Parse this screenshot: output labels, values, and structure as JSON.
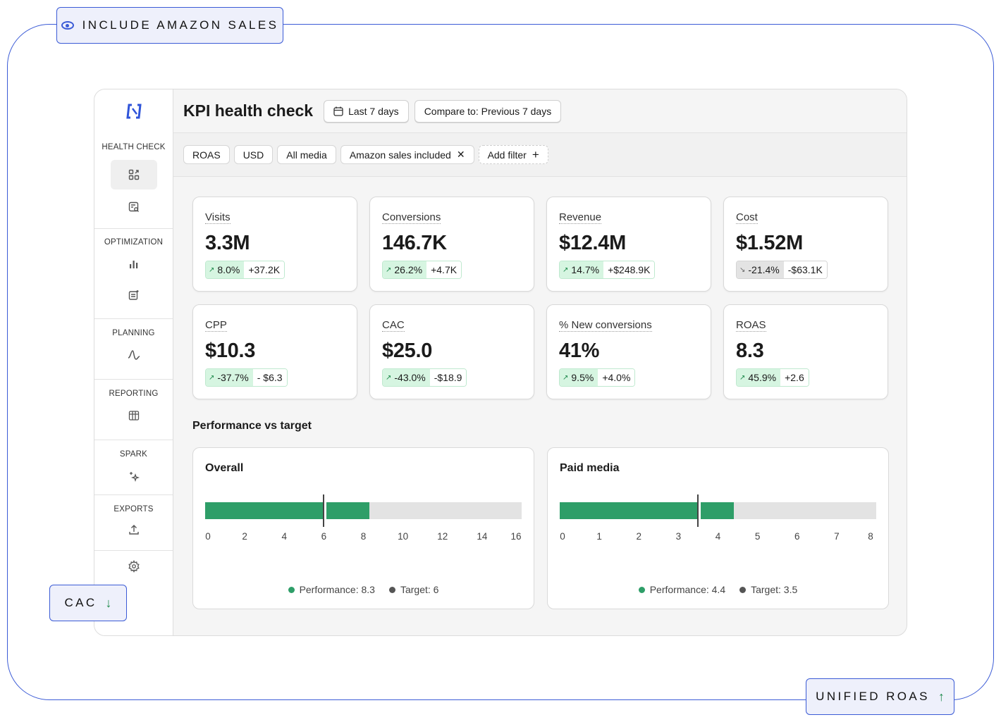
{
  "callouts": {
    "top": "INCLUDE AMAZON SALES",
    "cac": "CAC",
    "roas": "UNIFIED ROAS",
    "cac_arrow": "↓",
    "roas_arrow": "↑"
  },
  "sidebar": {
    "sections": [
      {
        "label": "HEALTH CHECK",
        "icons": [
          "dashboard-icon",
          "search-report-icon"
        ]
      },
      {
        "label": "OPTIMIZATION",
        "icons": [
          "bar-chart-icon",
          "sparkle-doc-icon"
        ]
      },
      {
        "label": "PLANNING",
        "icons": [
          "waveform-icon"
        ]
      },
      {
        "label": "REPORTING",
        "icons": [
          "table-icon"
        ]
      },
      {
        "label": "SPARK",
        "icons": [
          "sparkles-icon"
        ]
      },
      {
        "label": "EXPORTS",
        "icons": [
          "upload-icon"
        ]
      }
    ],
    "settings_icon": "gear-icon"
  },
  "header": {
    "title": "KPI health check",
    "date_range": "Last 7 days",
    "compare": "Compare to: Previous 7 days"
  },
  "filters": {
    "chips": [
      "ROAS",
      "USD",
      "All media"
    ],
    "amazon_chip": "Amazon sales included",
    "add_filter": "Add filter",
    "close_glyph": "✕",
    "plus_glyph": "+"
  },
  "kpis": [
    {
      "label": "Visits",
      "value": "3.3M",
      "pct": "8.0%",
      "abs": "+37.2K",
      "direction": "up"
    },
    {
      "label": "Conversions",
      "value": "146.7K",
      "pct": "26.2%",
      "abs": "+4.7K",
      "direction": "up"
    },
    {
      "label": "Revenue",
      "value": "$12.4M",
      "pct": "14.7%",
      "abs": "+$248.9K",
      "direction": "up"
    },
    {
      "label": "Cost",
      "value": "$1.52M",
      "pct": "-21.4%",
      "abs": "-$63.1K",
      "direction": "down"
    },
    {
      "label": "CPP",
      "value": "$10.3",
      "pct": "-37.7%",
      "abs": "- $6.3",
      "direction": "up"
    },
    {
      "label": "CAC",
      "value": "$25.0",
      "pct": "-43.0%",
      "abs": "-$18.9",
      "direction": "up"
    },
    {
      "label": "% New conversions",
      "value": "41%",
      "pct": "9.5%",
      "abs": "+4.0%",
      "direction": "up"
    },
    {
      "label": "ROAS",
      "value": "8.3",
      "pct": "45.9%",
      "abs": "+2.6",
      "direction": "up"
    }
  ],
  "performance": {
    "title": "Performance vs target",
    "cards": [
      {
        "title": "Overall",
        "performance": 8.3,
        "target": 6,
        "max": 16,
        "ticks": [
          "0",
          "2",
          "4",
          "6",
          "8",
          "10",
          "12",
          "14",
          "16"
        ],
        "perf_label": "Performance: 8.3",
        "target_label": "Target: 6"
      },
      {
        "title": "Paid media",
        "performance": 4.4,
        "target": 3.5,
        "max": 8,
        "ticks": [
          "0",
          "1",
          "2",
          "3",
          "4",
          "5",
          "6",
          "7",
          "8"
        ],
        "perf_label": "Performance: 4.4",
        "target_label": "Target: 3.5"
      }
    ]
  },
  "colors": {
    "accent": "#3b5bd6",
    "positive": "#2e9e68",
    "positive_bg": "#d6f5e1",
    "neutral_bg": "#e3e3e3"
  }
}
